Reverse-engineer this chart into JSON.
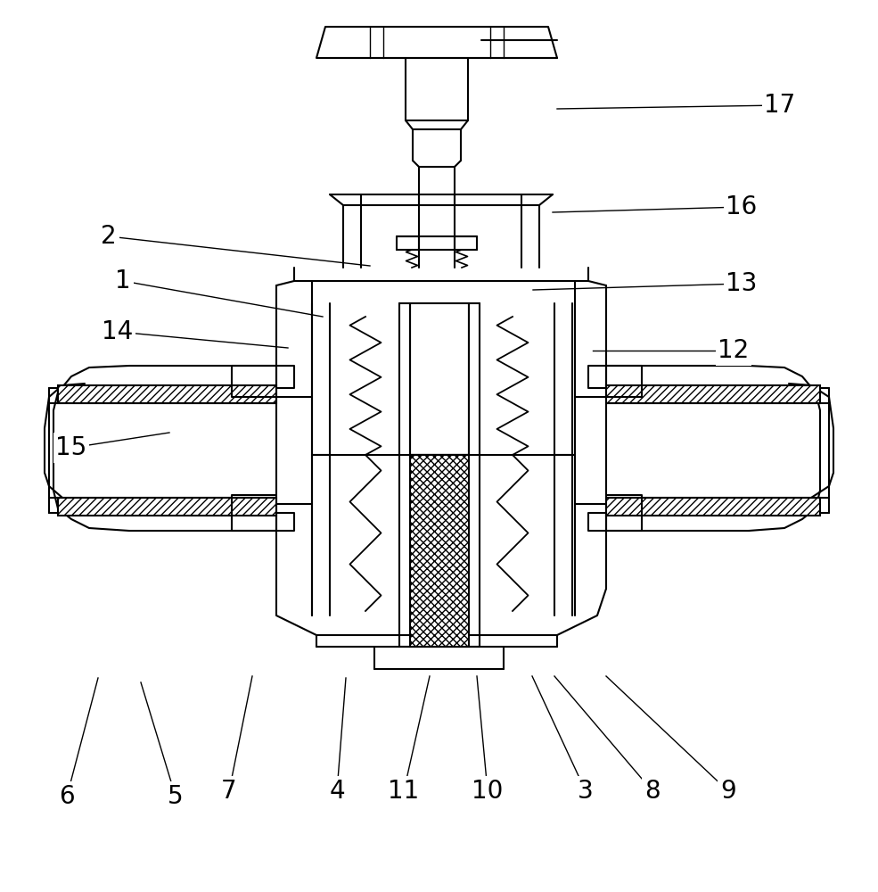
{
  "bg_color": "#ffffff",
  "lc": "#000000",
  "lw": 1.5,
  "lw_thin": 1.0,
  "label_fs": 20,
  "annotations": [
    [
      "17",
      625,
      122,
      875,
      118
    ],
    [
      "16",
      620,
      238,
      832,
      232
    ],
    [
      "13",
      598,
      325,
      832,
      318
    ],
    [
      "2",
      415,
      298,
      122,
      265
    ],
    [
      "1",
      362,
      355,
      138,
      315
    ],
    [
      "12",
      665,
      393,
      823,
      393
    ],
    [
      "14",
      323,
      390,
      132,
      372
    ],
    [
      "15",
      190,
      485,
      80,
      502
    ],
    [
      "6",
      110,
      760,
      75,
      893
    ],
    [
      "5",
      158,
      765,
      197,
      893
    ],
    [
      "7",
      283,
      758,
      257,
      887
    ],
    [
      "4",
      388,
      760,
      378,
      887
    ],
    [
      "11",
      482,
      758,
      453,
      887
    ],
    [
      "10",
      535,
      758,
      547,
      887
    ],
    [
      "3",
      597,
      758,
      657,
      887
    ],
    [
      "8",
      622,
      758,
      732,
      887
    ],
    [
      "9",
      680,
      758,
      817,
      887
    ]
  ]
}
